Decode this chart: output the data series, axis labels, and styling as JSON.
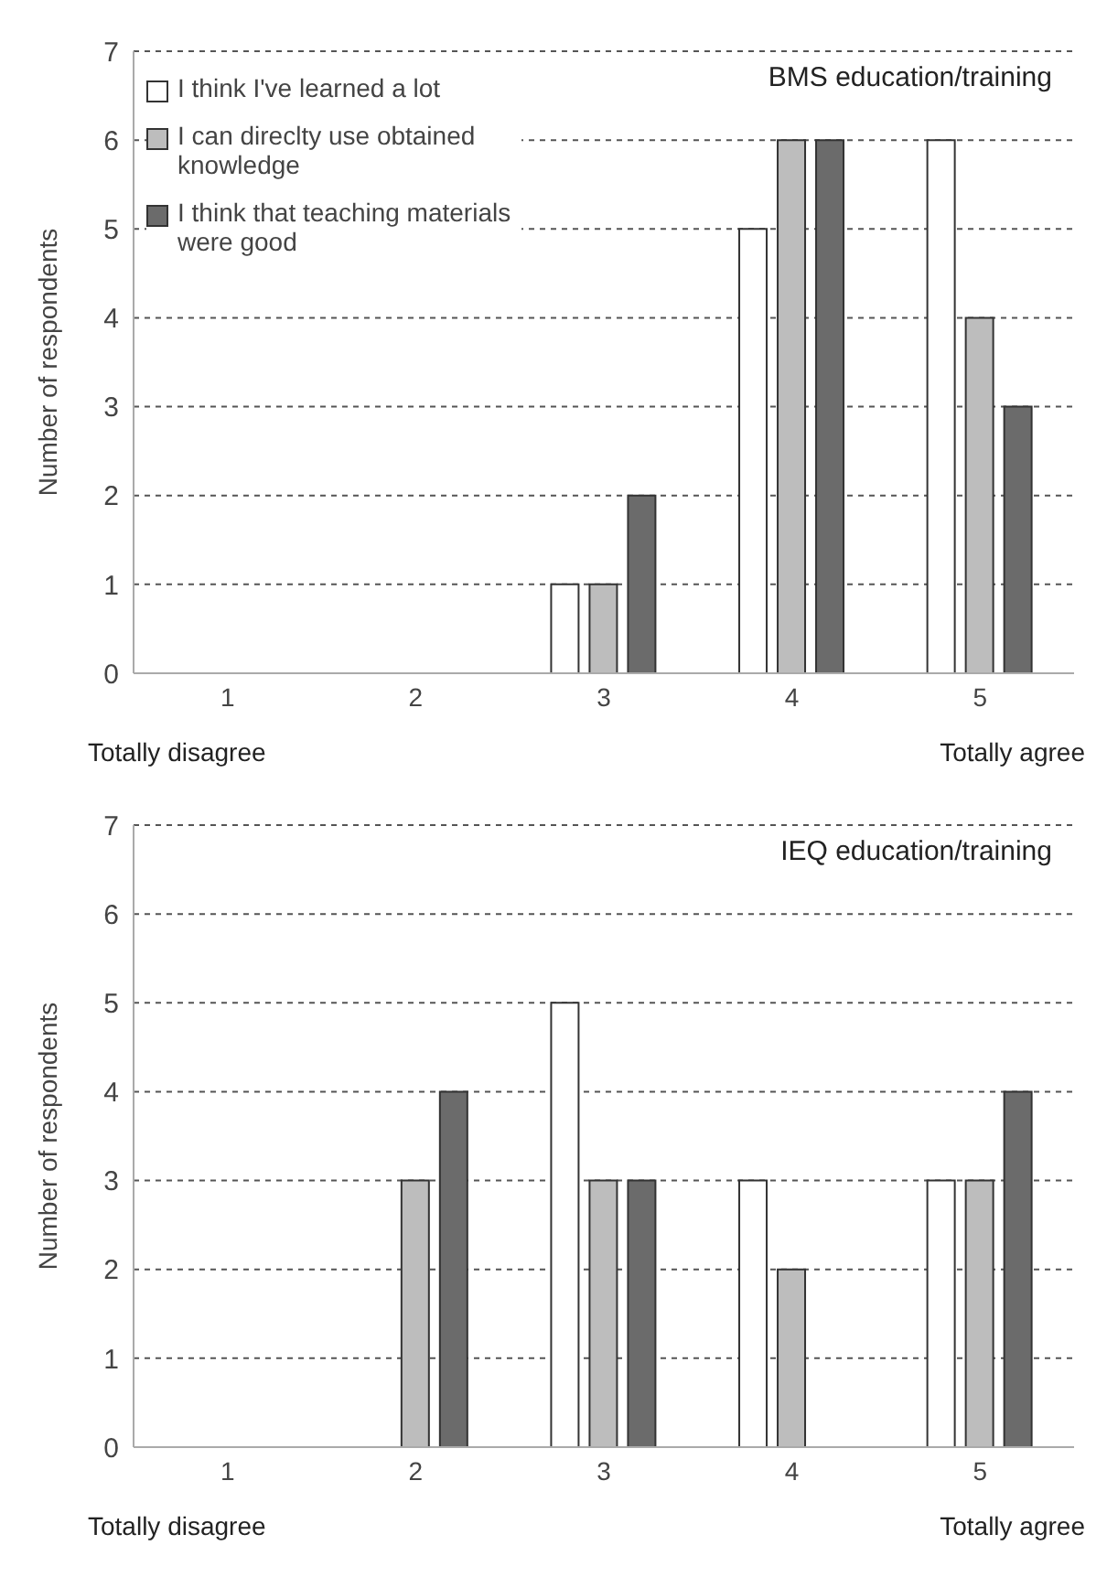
{
  "chart_data": [
    {
      "type": "bar",
      "title": "BMS education/training",
      "ylabel": "Number of respondents",
      "categories": [
        "1",
        "2",
        "3",
        "4",
        "5"
      ],
      "ylim": [
        0,
        7
      ],
      "yticks": [
        0,
        1,
        2,
        3,
        4,
        5,
        6,
        7
      ],
      "grid": "y",
      "legend": "top left",
      "annotations": [
        "Totally disagree",
        "Totally agree"
      ],
      "series": [
        {
          "name": "I think I've learned a lot",
          "color": "#ffffff",
          "values": [
            0,
            0,
            1,
            5,
            6
          ]
        },
        {
          "name": "I can direclty use obtained knowledge",
          "color": "#bdbdbd",
          "values": [
            0,
            0,
            1,
            6,
            4
          ]
        },
        {
          "name": "I think that teaching materials were good",
          "color": "#6b6b6b",
          "values": [
            0,
            0,
            2,
            6,
            3
          ]
        }
      ]
    },
    {
      "type": "bar",
      "title": "IEQ education/training",
      "ylabel": "Number of respondents",
      "categories": [
        "1",
        "2",
        "3",
        "4",
        "5"
      ],
      "ylim": [
        0,
        7
      ],
      "yticks": [
        0,
        1,
        2,
        3,
        4,
        5,
        6,
        7
      ],
      "grid": "y",
      "annotations": [
        "Totally disagree",
        "Totally agree"
      ],
      "series": [
        {
          "color": "#ffffff",
          "values": [
            0,
            0,
            5,
            3,
            3
          ]
        },
        {
          "color": "#bdbdbd",
          "values": [
            0,
            3,
            3,
            2,
            3
          ]
        },
        {
          "color": "#6b6b6b",
          "values": [
            0,
            4,
            3,
            0,
            4
          ]
        }
      ]
    }
  ]
}
